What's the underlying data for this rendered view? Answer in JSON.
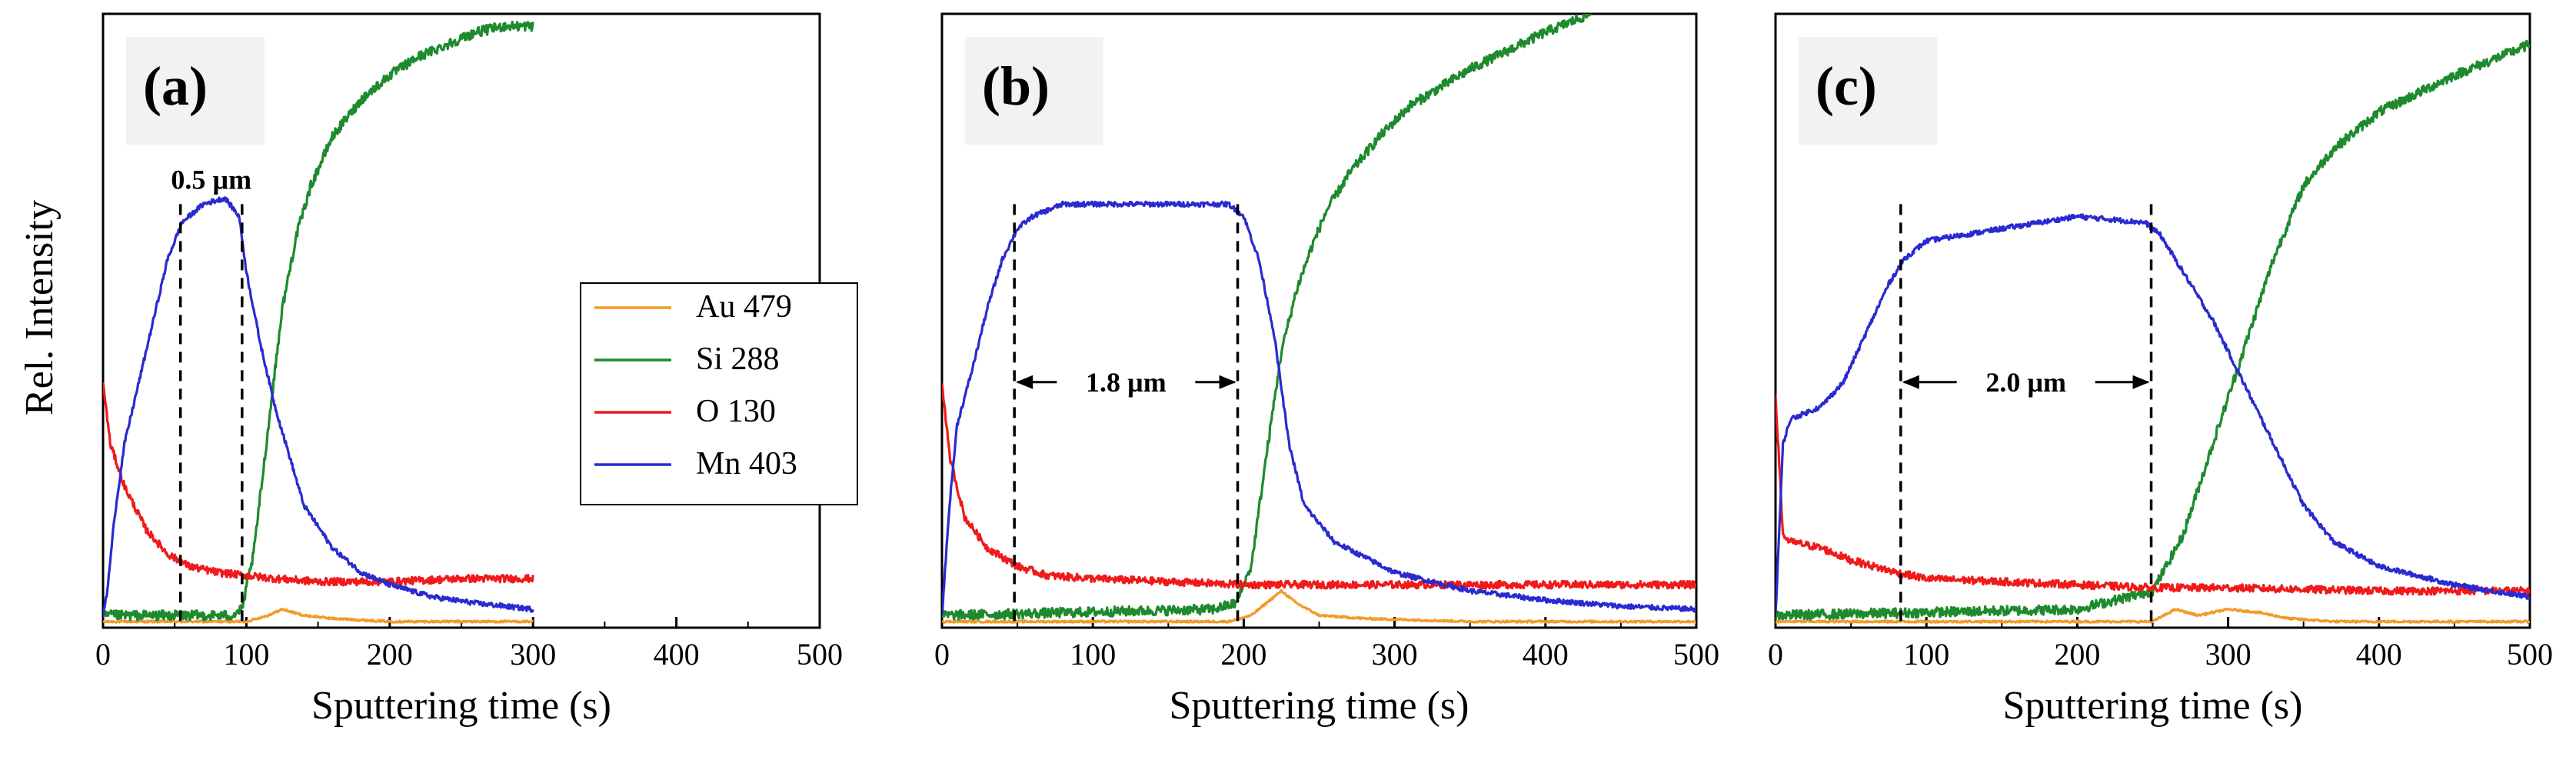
{
  "figure": {
    "ylabel": "Rel. Intensity",
    "series_colors": {
      "Au 479": "#f39a2a",
      "Si 288": "#1e8a2e",
      "O 130": "#f01a1a",
      "Mn 403": "#2a2ad0"
    }
  },
  "chart_data": [
    {
      "type": "line",
      "panel_label": "(a)",
      "xlabel": "Sputtering time (s)",
      "ylabel": "Rel. Intensity",
      "xlim": [
        0,
        500
      ],
      "ylim": [
        0,
        1
      ],
      "xticks": [
        0,
        100,
        200,
        300,
        400,
        500
      ],
      "annotation": {
        "text": "0.5 µm",
        "x_start": 54,
        "x_end": 97,
        "y": 0.71,
        "style": "label-above"
      },
      "legend": {
        "position": "center-right",
        "entries": [
          "Au 479",
          "Si 288",
          "O 130",
          "Mn 403"
        ]
      },
      "series": [
        {
          "name": "Mn 403",
          "x": [
            0,
            3,
            8,
            15,
            30,
            45,
            55,
            70,
            85,
            95,
            100,
            110,
            120,
            130,
            140,
            160,
            180,
            200,
            230,
            260,
            300
          ],
          "values": [
            0.02,
            0.06,
            0.18,
            0.3,
            0.45,
            0.6,
            0.66,
            0.69,
            0.7,
            0.67,
            0.58,
            0.46,
            0.36,
            0.28,
            0.2,
            0.13,
            0.09,
            0.07,
            0.05,
            0.04,
            0.03
          ]
        },
        {
          "name": "O 130",
          "x": [
            0,
            5,
            15,
            30,
            45,
            60,
            80,
            100,
            120,
            150,
            200,
            250,
            300
          ],
          "values": [
            0.4,
            0.3,
            0.23,
            0.16,
            0.12,
            0.1,
            0.09,
            0.085,
            0.08,
            0.075,
            0.075,
            0.08,
            0.08
          ]
        },
        {
          "name": "Si 288",
          "x": [
            0,
            90,
            97,
            105,
            115,
            125,
            135,
            145,
            160,
            180,
            200,
            220,
            240,
            260,
            280,
            300
          ],
          "values": [
            0.02,
            0.02,
            0.03,
            0.12,
            0.32,
            0.52,
            0.64,
            0.72,
            0.8,
            0.86,
            0.9,
            0.93,
            0.95,
            0.97,
            0.98,
            0.98
          ]
        },
        {
          "name": "Au 479",
          "x": [
            0,
            100,
            115,
            125,
            140,
            160,
            200,
            250,
            300
          ],
          "values": [
            0.01,
            0.01,
            0.02,
            0.03,
            0.02,
            0.015,
            0.01,
            0.01,
            0.01
          ]
        }
      ]
    },
    {
      "type": "line",
      "panel_label": "(b)",
      "xlabel": "Sputtering time (s)",
      "ylabel": "",
      "xlim": [
        0,
        500
      ],
      "ylim": [
        0,
        1
      ],
      "xticks": [
        0,
        100,
        200,
        300,
        400,
        500
      ],
      "annotation": {
        "text": "1.8 µm",
        "x_start": 48,
        "x_end": 196,
        "y": 0.4,
        "style": "arrows"
      },
      "series": [
        {
          "name": "Mn 403",
          "x": [
            0,
            5,
            10,
            20,
            30,
            40,
            50,
            60,
            80,
            100,
            150,
            190,
            200,
            210,
            220,
            230,
            240,
            260,
            300,
            350,
            400,
            450,
            500
          ],
          "values": [
            0.02,
            0.2,
            0.33,
            0.42,
            0.52,
            0.6,
            0.65,
            0.67,
            0.69,
            0.69,
            0.69,
            0.69,
            0.67,
            0.6,
            0.48,
            0.3,
            0.2,
            0.14,
            0.09,
            0.06,
            0.045,
            0.035,
            0.03
          ]
        },
        {
          "name": "O 130",
          "x": [
            0,
            5,
            15,
            30,
            50,
            70,
            100,
            150,
            200,
            250,
            300,
            400,
            500
          ],
          "values": [
            0.4,
            0.28,
            0.18,
            0.13,
            0.1,
            0.085,
            0.08,
            0.075,
            0.07,
            0.07,
            0.07,
            0.07,
            0.07
          ]
        },
        {
          "name": "Si 288",
          "x": [
            0,
            180,
            195,
            205,
            215,
            225,
            235,
            245,
            255,
            270,
            290,
            310,
            350,
            400,
            430
          ],
          "values": [
            0.02,
            0.03,
            0.04,
            0.1,
            0.28,
            0.45,
            0.55,
            0.62,
            0.68,
            0.74,
            0.8,
            0.85,
            0.91,
            0.97,
            1.0
          ]
        },
        {
          "name": "Au 479",
          "x": [
            0,
            190,
            205,
            215,
            225,
            235,
            250,
            280,
            350,
            500
          ],
          "values": [
            0.01,
            0.01,
            0.02,
            0.04,
            0.06,
            0.04,
            0.02,
            0.015,
            0.01,
            0.01
          ]
        }
      ]
    },
    {
      "type": "line",
      "panel_label": "(c)",
      "xlabel": "Sputtering time (s)",
      "ylabel": "",
      "xlim": [
        0,
        500
      ],
      "ylim": [
        0,
        1
      ],
      "xticks": [
        0,
        100,
        200,
        300,
        400,
        500
      ],
      "annotation": {
        "text": "2.0 µm",
        "x_start": 83,
        "x_end": 249,
        "y": 0.4,
        "style": "arrows"
      },
      "series": [
        {
          "name": "Mn 403",
          "x": [
            0,
            5,
            10,
            30,
            45,
            60,
            75,
            85,
            100,
            150,
            200,
            245,
            255,
            270,
            290,
            310,
            330,
            350,
            370,
            400,
            450,
            500
          ],
          "values": [
            0.02,
            0.3,
            0.34,
            0.36,
            0.4,
            0.48,
            0.56,
            0.6,
            0.63,
            0.65,
            0.67,
            0.66,
            0.64,
            0.58,
            0.5,
            0.4,
            0.3,
            0.2,
            0.14,
            0.1,
            0.07,
            0.05
          ]
        },
        {
          "name": "O 130",
          "x": [
            0,
            5,
            10,
            30,
            50,
            80,
            100,
            150,
            200,
            250,
            300,
            400,
            500
          ],
          "values": [
            0.38,
            0.15,
            0.14,
            0.13,
            0.11,
            0.09,
            0.08,
            0.075,
            0.07,
            0.065,
            0.065,
            0.06,
            0.06
          ]
        },
        {
          "name": "Si 288",
          "x": [
            0,
            200,
            250,
            270,
            290,
            310,
            330,
            350,
            370,
            400,
            450,
            500
          ],
          "values": [
            0.02,
            0.03,
            0.06,
            0.15,
            0.3,
            0.45,
            0.6,
            0.72,
            0.78,
            0.84,
            0.9,
            0.95
          ]
        },
        {
          "name": "Au 479",
          "x": [
            0,
            250,
            265,
            280,
            300,
            320,
            340,
            370,
            420,
            500
          ],
          "values": [
            0.01,
            0.01,
            0.03,
            0.02,
            0.03,
            0.025,
            0.015,
            0.01,
            0.01,
            0.01
          ]
        }
      ]
    }
  ]
}
